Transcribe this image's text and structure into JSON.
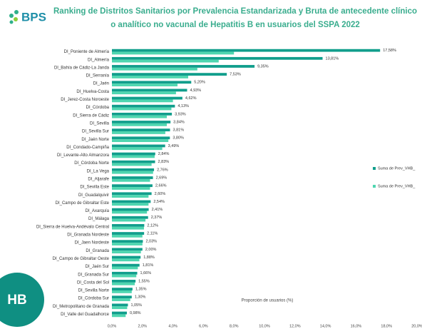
{
  "logo": "BPS",
  "badge": "HB",
  "chart_data": {
    "type": "hbar",
    "title": "Ranking de Distritos Sanitarios por Prevalencia Estandarizada y Bruta de antecedente clínico",
    "subtitle": "o analítico no vacunal de Hepatitis B en usuarios del SSPA 2022",
    "xlabel": "Proporción de usuarios (%)",
    "categories": [
      "DI_Poniente de Almería",
      "DI_Almería",
      "DI_Bahía de Cádiz-La Janda",
      "DI_Serranía",
      "DI_Jaén",
      "DI_Huelva-Costa",
      "DI_Jerez-Costa Noroeste",
      "DI_Córdoba",
      "DI_Sierra de Cádiz",
      "DI_Sevilla",
      "DI_Sevilla Sur",
      "DI_Jaén Norte",
      "DI_Condado-Campiña",
      "DI_Levante-Alto Almanzora",
      "DI_Córdoba Norte",
      "DI_La Vega",
      "DI_Aljarafe",
      "DI_Sevilla Este",
      "DI_Guadalquivir",
      "DI_Campo de Gibraltar Este",
      "DI_Axarquía",
      "DI_Málaga",
      "DI_Sierra de Huelva-Andévalo Central",
      "DI_Granada Nordeste",
      "DI_Jaen Nordeste",
      "DI_Granada",
      "DI_Campo de Gibraltar Oeste",
      "DI_Jaén Sur",
      "DI_Granada Sur",
      "DI_Costa del Sol",
      "DI_Sevilla Norte",
      "DI_Córdoba Sur",
      "DI_Metropolitano de Granada",
      "DI_Valle del Guadalhorce"
    ],
    "series": [
      {
        "name": "Suma de Prev_VHB_",
        "color": "#119e8c",
        "values": [
          17.58,
          13.81,
          9.35,
          7.53,
          5.2,
          4.93,
          4.62,
          4.13,
          3.93,
          3.84,
          3.81,
          3.8,
          3.49,
          2.84,
          2.83,
          2.76,
          2.69,
          2.66,
          2.6,
          2.54,
          2.41,
          2.37,
          2.12,
          2.11,
          2.03,
          2.0,
          1.88,
          1.81,
          1.66,
          1.55,
          1.35,
          1.3,
          1.05,
          0.98
        ],
        "value_labels": [
          "17,58%",
          "13,81%",
          "9,35%",
          "7,53%",
          "5,20%",
          "4,93%",
          "4,62%",
          "4,13%",
          "3,93%",
          "3,84%",
          "3,81%",
          "3,80%",
          "3,49%",
          "2,84%",
          "2,83%",
          "2,76%",
          "2,69%",
          "2,66%",
          "2,60%",
          "2,54%",
          "2,41%",
          "2,37%",
          "2,12%",
          "2,11%",
          "2,03%",
          "2,00%",
          "1,88%",
          "1,81%",
          "1,66%",
          "1,55%",
          "1,35%",
          "1,30%",
          "1,05%",
          "0,98%"
        ]
      },
      {
        "name": "Suma de Prev_VHB_",
        "color": "#4fd6b0",
        "values": [
          8.0,
          7.0,
          5.6,
          5.0,
          4.3,
          4.2,
          4.0,
          3.9,
          3.6,
          3.6,
          3.5,
          3.7,
          3.3,
          2.8,
          2.6,
          2.7,
          2.5,
          2.5,
          2.4,
          2.4,
          2.3,
          2.2,
          2.1,
          2.0,
          2.0,
          1.9,
          1.8,
          1.7,
          1.6,
          1.5,
          1.3,
          1.2,
          1.0,
          0.9
        ]
      }
    ],
    "xlim": [
      0,
      20
    ],
    "xticks": [
      {
        "value": 0,
        "label": "0,0%"
      },
      {
        "value": 2,
        "label": "2,0%"
      },
      {
        "value": 4,
        "label": "4,0%"
      },
      {
        "value": 6,
        "label": "6,0%"
      },
      {
        "value": 8,
        "label": "8,0%"
      },
      {
        "value": 10,
        "label": "10,0%"
      },
      {
        "value": 12,
        "label": "12,0%"
      },
      {
        "value": 14,
        "label": "14,0%"
      },
      {
        "value": 16,
        "label": "16,0%"
      },
      {
        "value": 18,
        "label": "18,0%"
      },
      {
        "value": 20,
        "label": "20,0%"
      }
    ],
    "grid": false,
    "legend": "right"
  }
}
